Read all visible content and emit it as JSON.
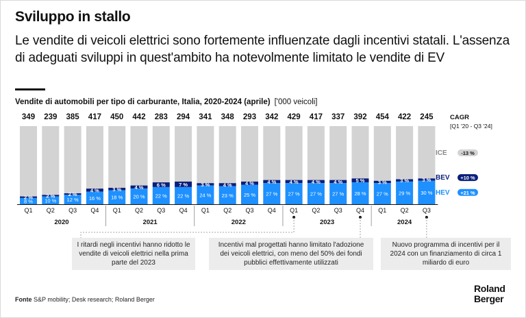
{
  "header": {
    "title": "Sviluppo in stallo",
    "subtitle": "Le vendite di veicoli elettrici sono fortemente influenzate dagli incentivi statali. L'assenza di adeguati sviluppi in quest'ambito ha notevolmente limitato le vendite di EV"
  },
  "chart_header": {
    "title": "Vendite di automobili per tipo di carburante, Italia, 2020-2024 (aprile)",
    "unit": "['000 veicoli]"
  },
  "chart_data": {
    "type": "bar",
    "stacked": true,
    "normalized": true,
    "title": "Vendite di automobili per tipo di carburante, Italia, 2020-2024 (aprile)",
    "unit": "['000 veicoli]",
    "categories": [
      "Q1",
      "Q2",
      "Q3",
      "Q4",
      "Q1",
      "Q2",
      "Q3",
      "Q4",
      "Q1",
      "Q2",
      "Q3",
      "Q4",
      "Q1",
      "Q2",
      "Q3",
      "Q4",
      "Q1",
      "Q2",
      "Q3"
    ],
    "years": [
      {
        "label": "2020",
        "start": 0,
        "end": 3
      },
      {
        "label": "2021",
        "start": 4,
        "end": 7
      },
      {
        "label": "2022",
        "start": 8,
        "end": 11
      },
      {
        "label": "2023",
        "start": 12,
        "end": 15
      },
      {
        "label": "2024",
        "start": 16,
        "end": 18
      }
    ],
    "totals": [
      349,
      239,
      385,
      417,
      450,
      442,
      283,
      294,
      341,
      348,
      293,
      342,
      429,
      417,
      337,
      392,
      454,
      422,
      245
    ],
    "series": [
      {
        "name": "HEV",
        "color": "#1e90ff",
        "values": [
          8,
          10,
          12,
          16,
          18,
          20,
          22,
          22,
          24,
          23,
          25,
          27,
          27,
          27,
          27,
          28,
          27,
          29,
          30
        ],
        "labels": [
          "8 %",
          "10 %",
          "12 %",
          "16 %",
          "18 %",
          "20 %",
          "22 %",
          "22 %",
          "24 %",
          "23 %",
          "25 %",
          "27 %",
          "27 %",
          "27 %",
          "27 %",
          "28 %",
          "27 %",
          "29 %",
          "30 %"
        ]
      },
      {
        "name": "BEV",
        "color": "#0a1f7a",
        "values": [
          2,
          2,
          2,
          4,
          3,
          4,
          6,
          7,
          3,
          4,
          4,
          4,
          4,
          4,
          4,
          5,
          3,
          3,
          3
        ],
        "labels": [
          "2 %",
          "2 %",
          "2 %",
          "4 %",
          "3 %",
          "4 %",
          "6 %",
          "7 %",
          "3 %",
          "4 %",
          "4 %",
          "4 %",
          "4 %",
          "4 %",
          "4 %",
          "5 %",
          "3 %",
          "3 %",
          "3 %"
        ]
      },
      {
        "name": "ICE",
        "color": "#d3d3d3",
        "values": [
          90,
          88,
          86,
          80,
          79,
          76,
          72,
          71,
          73,
          73,
          71,
          69,
          69,
          69,
          69,
          67,
          70,
          68,
          67
        ]
      }
    ],
    "ylim": [
      0,
      100
    ],
    "cagr": {
      "title": "CAGR",
      "period": "[Q1 '20 - Q3 '24]",
      "items": [
        {
          "name": "ICE",
          "value": "-13 %",
          "color": "#d3d3d3"
        },
        {
          "name": "BEV",
          "value": "+10 %",
          "color": "#0a1f7a"
        },
        {
          "name": "HEV",
          "value": "+21 %",
          "color": "#1e90ff"
        }
      ]
    },
    "annotations": [
      {
        "text": "I ritardi negli incentivi hanno ridotto le vendite di veicoli elettrici nella prima parte del 2023",
        "ref_index": 12
      },
      {
        "text": "Incentivi mal progettati hanno limitato l'adozione dei veicoli elettrici, con meno del 50% dei fondi pubblici effettivamente utilizzati",
        "ref_index": 15
      },
      {
        "text": "Nuovo programma di incentivi per il 2024 con un finanziamento di circa 1 miliardo di euro",
        "ref_index": 18
      }
    ]
  },
  "footer": {
    "source_label": "Fonte",
    "source_text": "S&P mobility; Desk research; Roland Berger",
    "logo_line1": "Roland",
    "logo_line2": "Berger"
  }
}
